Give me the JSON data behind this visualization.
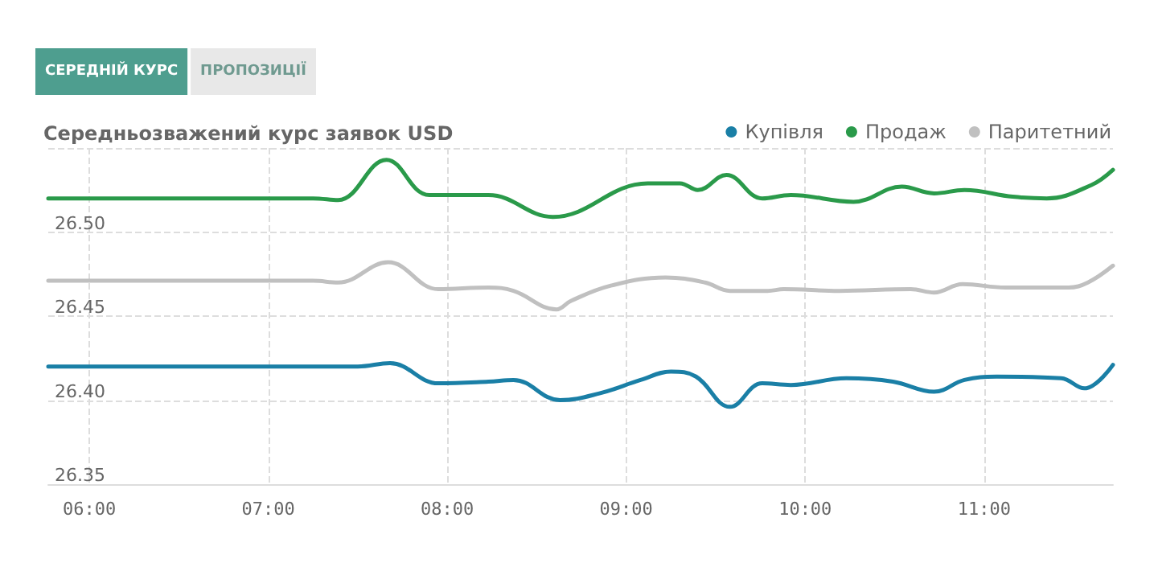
{
  "chart_data": {
    "type": "line",
    "title": "Середньозважений курс заявок USD",
    "annotations": [
      "СЕРЕДНІЙ КУРС",
      "ПРОПОЗИЦІЇ"
    ],
    "series": [
      {
        "name": "Купівля",
        "color": "#1a7fa6",
        "x": [
          5.77,
          7.5,
          7.68,
          7.95,
          8.23,
          8.37,
          8.63,
          8.85,
          9.08,
          9.25,
          9.39,
          9.58,
          9.76,
          9.92,
          10.23,
          10.49,
          10.72,
          10.89,
          11.07,
          11.43,
          11.56,
          11.72
        ],
        "values": [
          26.42,
          26.42,
          26.422,
          26.41,
          26.411,
          26.412,
          26.4,
          26.404,
          26.412,
          26.417,
          26.414,
          26.396,
          26.41,
          26.409,
          26.413,
          26.411,
          26.405,
          26.412,
          26.414,
          26.413,
          26.407,
          26.421
        ]
      },
      {
        "name": "Продаж",
        "color": "#2a9a4a",
        "x": [
          5.77,
          7.25,
          7.39,
          7.66,
          7.9,
          8.23,
          8.59,
          9.12,
          9.3,
          9.4,
          9.56,
          9.76,
          9.92,
          10.27,
          10.54,
          10.72,
          10.89,
          11.16,
          11.35,
          11.6,
          11.72
        ],
        "values": [
          26.52,
          26.52,
          26.519,
          26.543,
          26.522,
          26.522,
          26.509,
          26.529,
          26.529,
          26.525,
          26.534,
          26.52,
          26.522,
          26.518,
          26.527,
          26.523,
          26.525,
          26.521,
          26.52,
          26.528,
          26.537
        ]
      },
      {
        "name": "Паритетний",
        "color": "#c0c0c0",
        "x": [
          5.77,
          7.25,
          7.39,
          7.67,
          7.95,
          8.23,
          8.37,
          8.61,
          8.69,
          8.91,
          9.22,
          9.44,
          9.58,
          9.79,
          9.88,
          10.19,
          10.59,
          10.72,
          10.88,
          11.12,
          11.47,
          11.58,
          11.72
        ],
        "values": [
          26.471,
          26.471,
          26.47,
          26.482,
          26.466,
          26.467,
          26.465,
          26.454,
          26.459,
          26.468,
          26.473,
          26.47,
          26.465,
          26.465,
          26.466,
          26.465,
          26.466,
          26.464,
          26.469,
          26.467,
          26.467,
          26.47,
          26.48
        ]
      }
    ],
    "xlim": [
      5.77,
      11.72
    ],
    "xticks": [
      {
        "value": 6,
        "label": "06:00"
      },
      {
        "value": 7,
        "label": "07:00"
      },
      {
        "value": 8,
        "label": "08:00"
      },
      {
        "value": 9,
        "label": "09:00"
      },
      {
        "value": 10,
        "label": "10:00"
      },
      {
        "value": 11,
        "label": "11:00"
      }
    ],
    "ylim": [
      26.35,
      26.55
    ],
    "yticks": [
      26.35,
      {
        "value": 26.4,
        "label": "26.40"
      },
      26.45,
      {
        "value": 26.5,
        "label": "26.50"
      },
      {
        "value": 26.55,
        "label": null
      }
    ],
    "grid": true,
    "legend": "top right",
    "marker": "none",
    "line_style": "solid"
  }
}
